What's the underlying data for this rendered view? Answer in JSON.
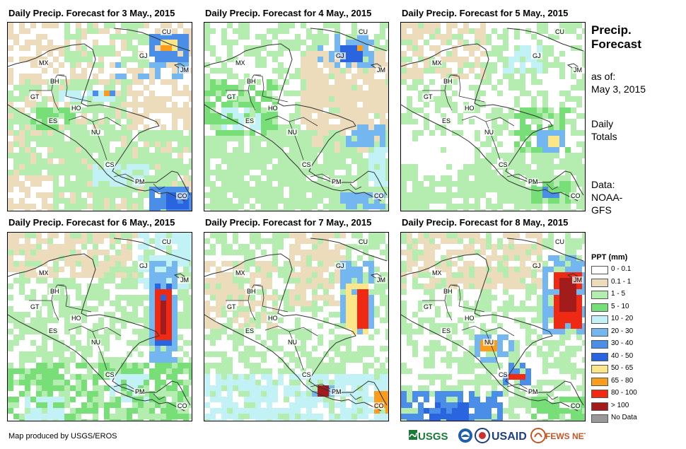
{
  "panels": [
    {
      "title": "Daily Precip. Forecast for 3 May., 2015"
    },
    {
      "title": "Daily Precip. Forecast for 4 May., 2015"
    },
    {
      "title": "Daily Precip. Forecast for 5 May., 2015"
    },
    {
      "title": "Daily Precip. Forecast for 6 May., 2015"
    },
    {
      "title": "Daily Precip. Forecast for 7 May., 2015"
    },
    {
      "title": "Daily Precip. Forecast for 8 May., 2015"
    }
  ],
  "country_labels": [
    "CU",
    "MX",
    "GJ",
    "JM",
    "BH",
    "GT",
    "HO",
    "ES",
    "NU",
    "CS",
    "PM",
    "CO"
  ],
  "sidebar": {
    "title_line1": "Precip.",
    "title_line2": "Forecast",
    "asof_line1": "as of:",
    "asof_line2": "May 3, 2015",
    "totals_line1": "Daily",
    "totals_line2": "Totals",
    "data_line1": "Data:",
    "data_line2": "NOAA-",
    "data_line3": "GFS"
  },
  "legend": {
    "title": "PPT (mm)",
    "items": [
      {
        "label": "0 - 0.1",
        "color": "#ffffff"
      },
      {
        "label": "0.1 - 1",
        "color": "#ecdcbc"
      },
      {
        "label": "1 - 5",
        "color": "#b5ecb0"
      },
      {
        "label": "5 - 10",
        "color": "#78de78"
      },
      {
        "label": "10 - 20",
        "color": "#c2f2f6"
      },
      {
        "label": "20 - 30",
        "color": "#74b6f0"
      },
      {
        "label": "30 - 40",
        "color": "#4a8ee8"
      },
      {
        "label": "40 - 50",
        "color": "#2a64de"
      },
      {
        "label": "50 - 65",
        "color": "#fce68a"
      },
      {
        "label": "65 - 80",
        "color": "#fa9c1e"
      },
      {
        "label": "80 - 100",
        "color": "#ee2a14"
      },
      {
        "label": "> 100",
        "color": "#a31c1c"
      },
      {
        "label": "No Data",
        "color": "#999999"
      }
    ]
  },
  "footer": {
    "credit": "Map produced by USGS/EROS"
  },
  "logos": {
    "usgs": "USGS",
    "usaid": "USAID",
    "fews": "FEWS NET"
  }
}
